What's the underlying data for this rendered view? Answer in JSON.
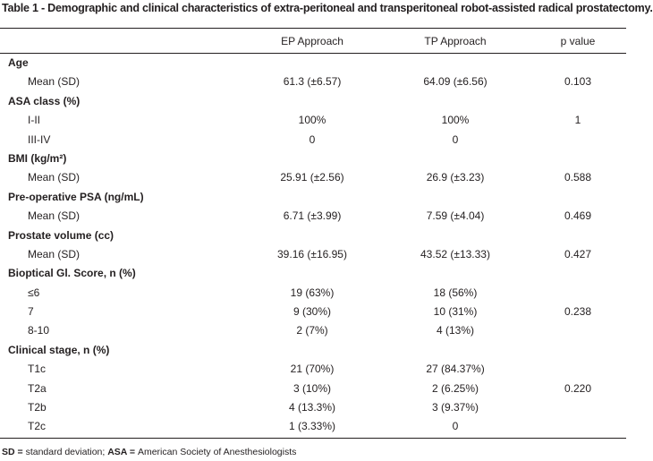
{
  "caption": "Table 1 - Demographic and clinical characteristics of extra-peritoneal and transperitoneal robot-assisted radical prostatectomy.",
  "headers": {
    "label": "",
    "ep": "EP Approach",
    "tp": "TP Approach",
    "p": "p value"
  },
  "rows": [
    {
      "label": "Age",
      "section": true
    },
    {
      "label": "Mean (SD)",
      "ep": "61.3 (±6.57)",
      "tp": "64.09 (±6.56)",
      "p": "0.103"
    },
    {
      "label": "ASA class (%)",
      "section": true
    },
    {
      "label": "I-II",
      "ep": "100%",
      "tp": "100%",
      "p": "1"
    },
    {
      "label": "III-IV",
      "ep": "0",
      "tp": "0",
      "p": ""
    },
    {
      "label": "BMI (kg/m²)",
      "section": true
    },
    {
      "label": "Mean (SD)",
      "ep": "25.91 (±2.56)",
      "tp": "26.9 (±3.23)",
      "p": "0.588"
    },
    {
      "label": "Pre-operative PSA (ng/mL)",
      "section": true
    },
    {
      "label": "Mean (SD)",
      "ep": "6.71 (±3.99)",
      "tp": "7.59 (±4.04)",
      "p": "0.469"
    },
    {
      "label": "Prostate volume (cc)",
      "section": true
    },
    {
      "label": "Mean (SD)",
      "ep": "39.16 (±16.95)",
      "tp": "43.52 (±13.33)",
      "p": "0.427"
    },
    {
      "label": "Bioptical Gl. Score, n (%)",
      "section": true
    },
    {
      "label": "≤6",
      "ep": "19 (63%)",
      "tp": "18 (56%)",
      "p": ""
    },
    {
      "label": "7",
      "ep": "9 (30%)",
      "tp": "10 (31%)",
      "p": "0.238"
    },
    {
      "label": "8-10",
      "ep": "2 (7%)",
      "tp": "4 (13%)",
      "p": ""
    },
    {
      "label": "Clinical stage, n (%)",
      "section": true
    },
    {
      "label": "T1c",
      "ep": "21 (70%)",
      "tp": "27 (84.37%)",
      "p": ""
    },
    {
      "label": "T2a",
      "ep": "3 (10%)",
      "tp": "2 (6.25%)",
      "p": "0.220"
    },
    {
      "label": "T2b",
      "ep": "4 (13.3%)",
      "tp": "3 (9.37%)",
      "p": ""
    },
    {
      "label": "T2c",
      "ep": "1 (3.33%)",
      "tp": "0",
      "p": ""
    }
  ],
  "footnote": [
    {
      "abbr": "SD",
      "sep": " = ",
      "text": "standard deviation; "
    },
    {
      "abbr": "ASA",
      "sep": " = ",
      "text": "American Society of Anesthesiologists"
    }
  ]
}
